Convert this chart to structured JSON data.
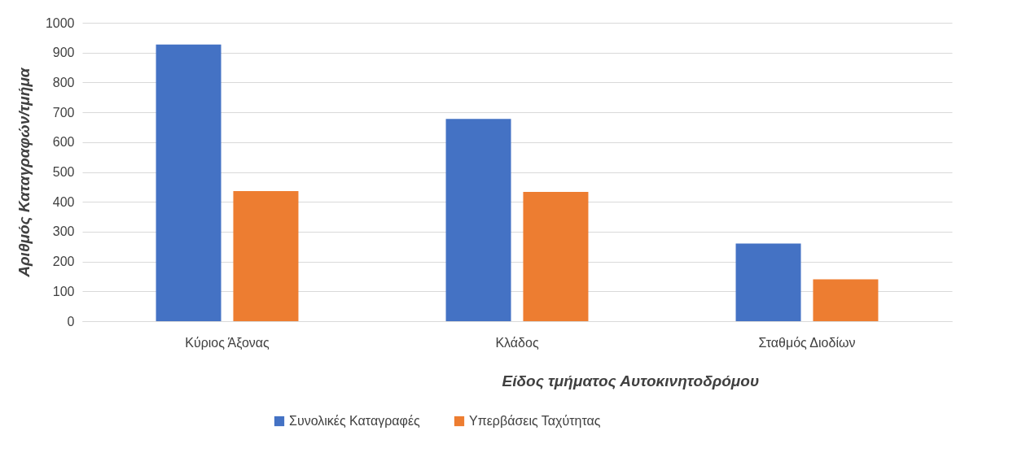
{
  "chart_data": {
    "type": "bar",
    "xlabel": "Είδος τμήματος Αυτοκινητοδρόμου",
    "ylabel": "Αριθμός Καταγραφών/τμήμα",
    "categories": [
      "Κύριος Άξονας",
      "Κλάδος",
      "Σταθμός Διοδίων"
    ],
    "series": [
      {
        "name": "Συνολικές Καταγραφές",
        "color": "#4472c4",
        "values": [
          927,
          678,
          260
        ]
      },
      {
        "name": "Υπερβάσεις Ταχύτητας",
        "color": "#ed7d31",
        "values": [
          436,
          433,
          140
        ]
      }
    ],
    "ylim": [
      0,
      1000
    ],
    "yticks": [
      0,
      100,
      200,
      300,
      400,
      500,
      600,
      700,
      800,
      900,
      1000
    ],
    "grid": "y",
    "legend": "bottom"
  }
}
